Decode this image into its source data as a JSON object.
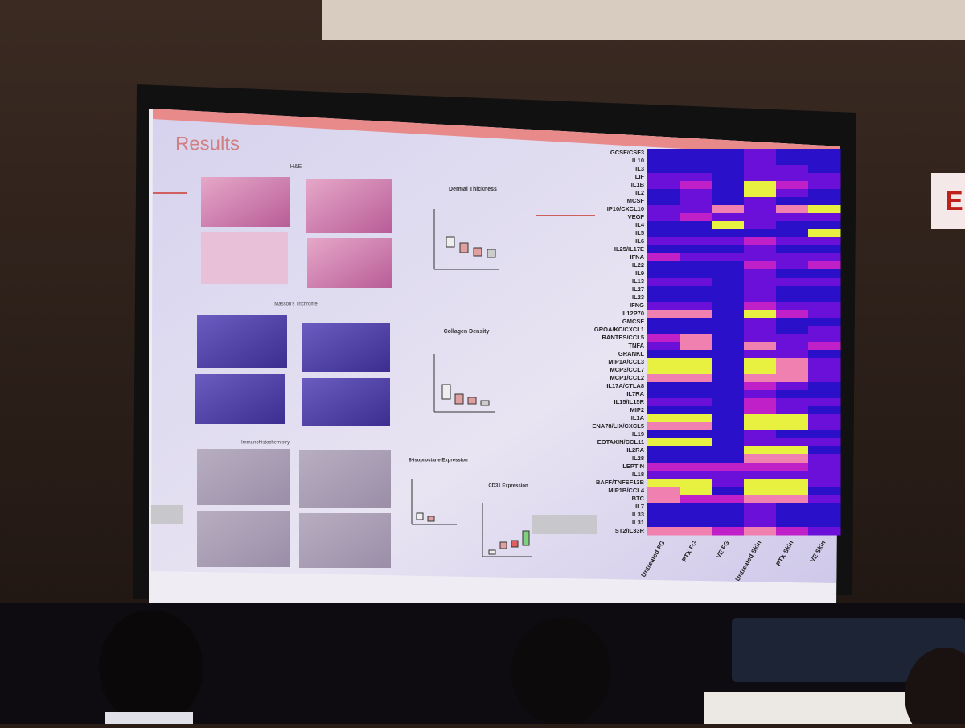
{
  "slide": {
    "title": "Results",
    "panels": {
      "he": "H&E",
      "trichrome": "Masson's Trichrome",
      "ihc": "Immunohistochemistry"
    },
    "plots": {
      "dermal": "Dermal Thickness",
      "collagen": "Collagen Density",
      "isoprostane": "8-isoprostane Expression",
      "cd31": "CD31 Expression"
    }
  },
  "heatmap": {
    "rows": [
      "GCSF/CSF3",
      "IL10",
      "IL3",
      "LIF",
      "IL1B",
      "IL2",
      "MCSF",
      "IP10/CXCL10",
      "VEGF",
      "IL4",
      "IL5",
      "IL6",
      "IL25/IL17E",
      "IFNA",
      "IL22",
      "IL9",
      "IL13",
      "IL27",
      "IL23",
      "IFNG",
      "IL12P70",
      "GMCSF",
      "GROA/KC/CXCL1",
      "RANTES/CCL5",
      "TNFA",
      "GRANKL",
      "MIP1A/CCL3",
      "MCP3/CCL7",
      "MCP1/CCL2",
      "IL17A/CTLA8",
      "IL7RA",
      "IL15/IL15R",
      "MIP2",
      "IL1A",
      "ENA78/LIX/CXCL5",
      "IL19",
      "EOTAXIN/CCL11",
      "IL2RA",
      "IL28",
      "LEPTIN",
      "IL18",
      "BAFF/TNFSF13B",
      "MIP1B/CCL4",
      "BTC",
      "IL7",
      "IL33",
      "IL31",
      "ST2/IL33R"
    ],
    "columns": [
      "Untreated FG",
      "PTX FG",
      "VE FG",
      "Untreated Skin",
      "PTX Skin",
      "VE Skin"
    ],
    "cells": [
      [
        0,
        0,
        0,
        1,
        0,
        0
      ],
      [
        0,
        0,
        0,
        1,
        0,
        0
      ],
      [
        0,
        0,
        0,
        1,
        1,
        0
      ],
      [
        1,
        1,
        0,
        1,
        1,
        1
      ],
      [
        1,
        2,
        0,
        4,
        2,
        1
      ],
      [
        0,
        1,
        0,
        4,
        1,
        0
      ],
      [
        0,
        1,
        0,
        1,
        0,
        0
      ],
      [
        1,
        1,
        3,
        1,
        3,
        4
      ],
      [
        1,
        2,
        1,
        1,
        1,
        1
      ],
      [
        0,
        0,
        4,
        1,
        0,
        0
      ],
      [
        0,
        0,
        0,
        0,
        0,
        4
      ],
      [
        1,
        1,
        1,
        2,
        1,
        1
      ],
      [
        0,
        0,
        0,
        1,
        0,
        0
      ],
      [
        2,
        1,
        1,
        1,
        1,
        1
      ],
      [
        0,
        0,
        0,
        2,
        1,
        2
      ],
      [
        0,
        0,
        0,
        1,
        0,
        0
      ],
      [
        1,
        1,
        0,
        1,
        1,
        1
      ],
      [
        0,
        0,
        0,
        1,
        0,
        0
      ],
      [
        0,
        0,
        0,
        1,
        0,
        0
      ],
      [
        1,
        1,
        0,
        2,
        1,
        1
      ],
      [
        3,
        3,
        0,
        4,
        2,
        1
      ],
      [
        0,
        0,
        0,
        1,
        0,
        0
      ],
      [
        0,
        0,
        0,
        1,
        0,
        1
      ],
      [
        2,
        3,
        0,
        1,
        1,
        1
      ],
      [
        1,
        3,
        0,
        3,
        1,
        2
      ],
      [
        0,
        0,
        0,
        1,
        1,
        0
      ],
      [
        4,
        4,
        0,
        4,
        3,
        1
      ],
      [
        4,
        4,
        0,
        4,
        3,
        1
      ],
      [
        3,
        3,
        0,
        3,
        3,
        1
      ],
      [
        0,
        0,
        0,
        2,
        1,
        0
      ],
      [
        0,
        0,
        0,
        1,
        0,
        0
      ],
      [
        1,
        1,
        0,
        2,
        1,
        1
      ],
      [
        0,
        0,
        0,
        2,
        1,
        0
      ],
      [
        4,
        4,
        0,
        4,
        4,
        1
      ],
      [
        3,
        3,
        0,
        4,
        4,
        1
      ],
      [
        0,
        0,
        0,
        1,
        0,
        0
      ],
      [
        4,
        4,
        0,
        1,
        1,
        1
      ],
      [
        0,
        0,
        0,
        4,
        4,
        0
      ],
      [
        0,
        0,
        0,
        3,
        3,
        1
      ],
      [
        2,
        2,
        2,
        2,
        2,
        1
      ],
      [
        1,
        1,
        1,
        1,
        1,
        1
      ],
      [
        4,
        4,
        1,
        4,
        4,
        1
      ],
      [
        3,
        4,
        0,
        4,
        4,
        0
      ],
      [
        3,
        2,
        2,
        3,
        3,
        1
      ],
      [
        0,
        0,
        0,
        1,
        0,
        0
      ],
      [
        0,
        0,
        0,
        1,
        0,
        0
      ],
      [
        0,
        0,
        0,
        1,
        0,
        0
      ],
      [
        3,
        3,
        2,
        3,
        2,
        1
      ]
    ]
  }
}
